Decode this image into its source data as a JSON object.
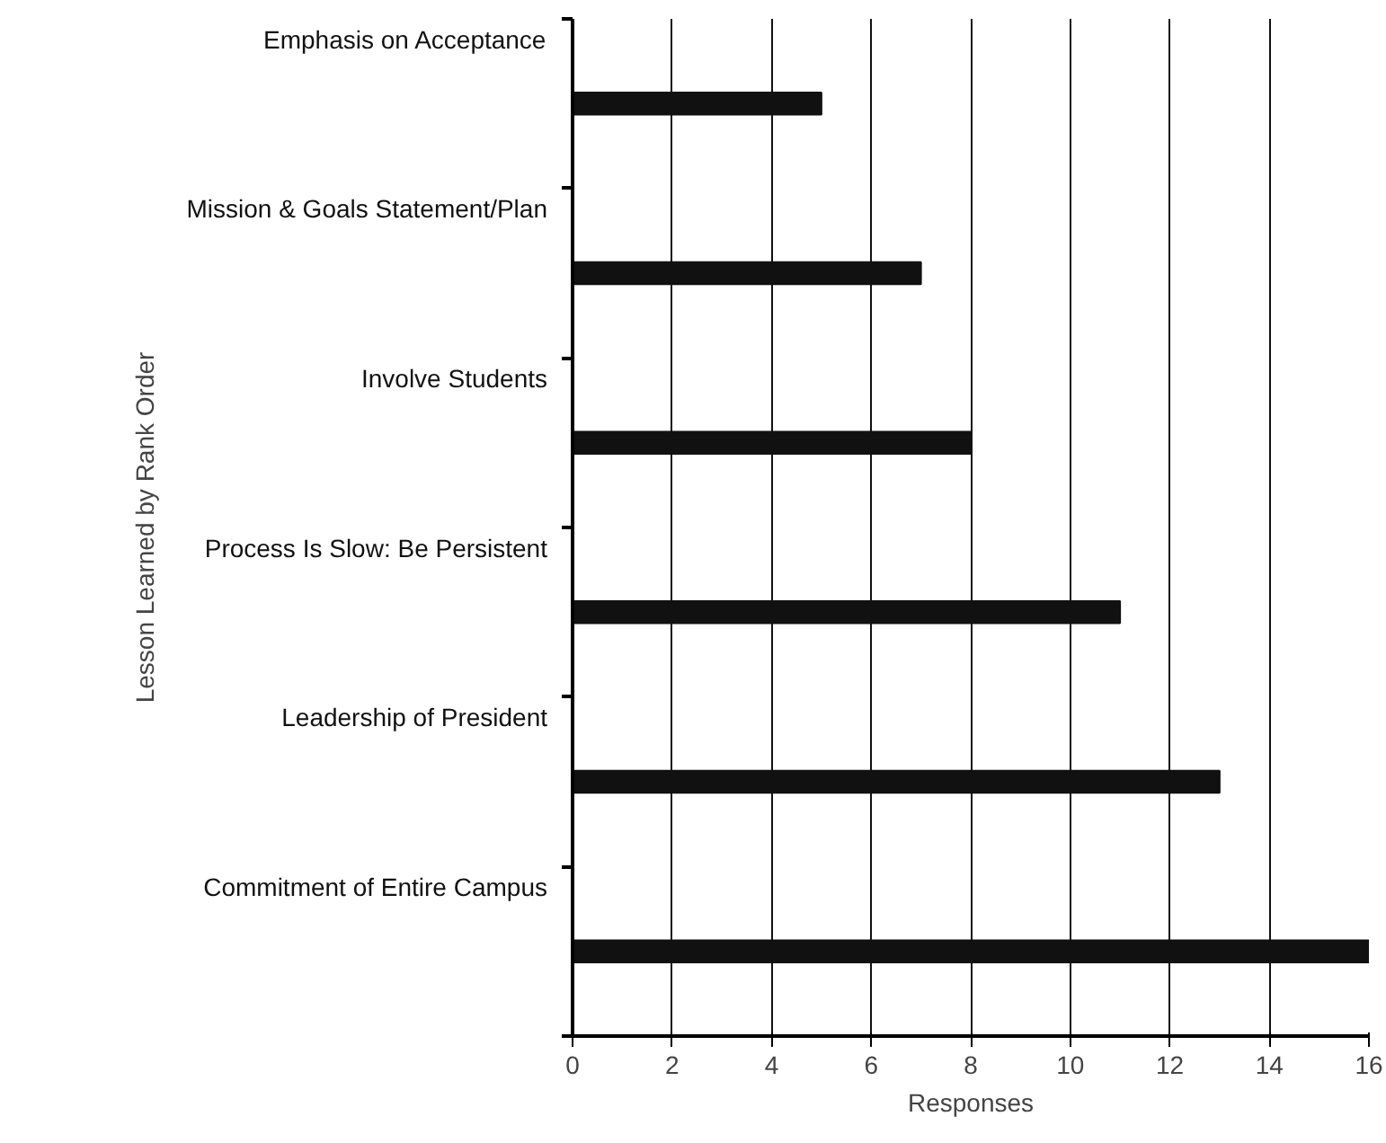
{
  "chart_data": {
    "type": "bar",
    "orientation": "horizontal",
    "xlabel": "Responses",
    "ylabel": "Lesson Learned by Rank Order",
    "categories": [
      "Emphasis on Acceptance",
      "Mission & Goals Statement/Plan",
      "Involve Students",
      "Process Is Slow: Be Persistent",
      "Leadership of President",
      "Commitment of Entire Campus"
    ],
    "values": [
      5,
      7,
      8,
      11,
      13,
      16
    ],
    "color": "#111111",
    "xlim": [
      0,
      16
    ],
    "xticks": [
      0,
      2,
      4,
      6,
      8,
      10,
      12,
      14,
      16
    ],
    "grid": "x"
  }
}
